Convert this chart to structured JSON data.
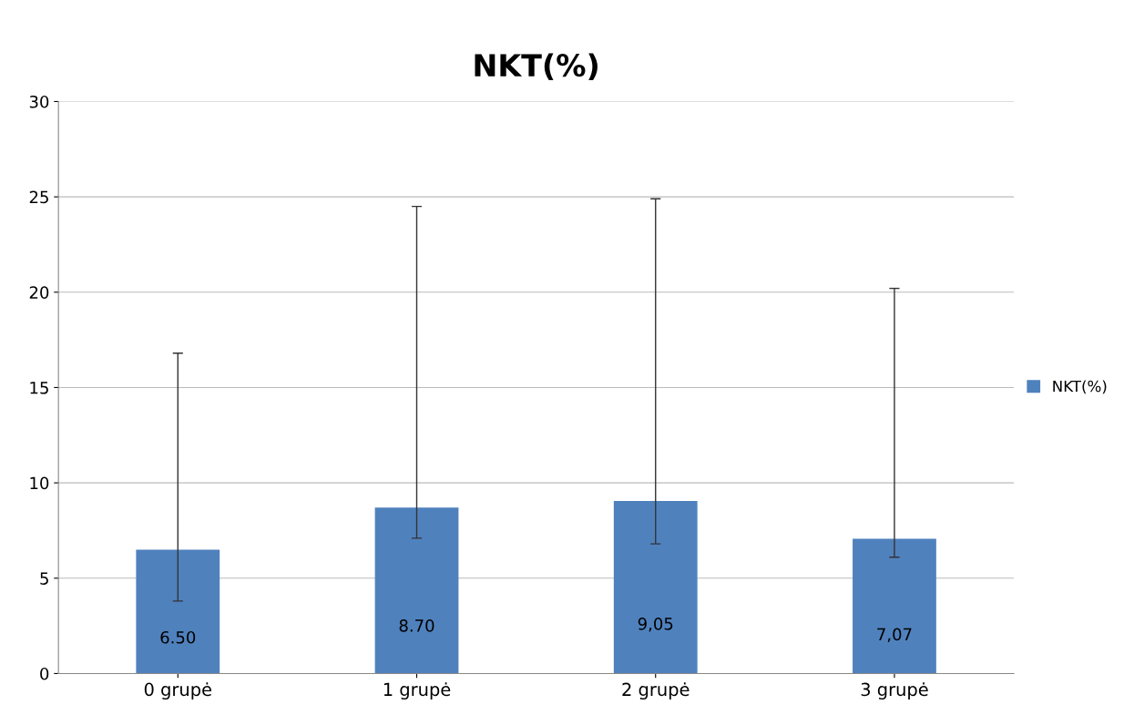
{
  "chart_data": {
    "type": "bar",
    "title": "NKT(%)",
    "categories": [
      "0 grupė",
      "1 grupė",
      "2 grupė",
      "3 grupė"
    ],
    "series": [
      {
        "name": "NKT(%)",
        "color": "#4f81bd",
        "values": [
          6.5,
          8.7,
          9.05,
          7.07
        ],
        "value_labels": [
          "6.50",
          "8.70",
          "9,05",
          "7,07"
        ],
        "errors": [
          [
            3.8,
            16.8
          ],
          [
            7.1,
            24.5
          ],
          [
            6.8,
            24.9
          ],
          [
            6.1,
            20.2
          ]
        ]
      }
    ],
    "ylim": [
      0,
      30
    ],
    "yticks": [
      0,
      5,
      10,
      15,
      20,
      25,
      30
    ],
    "grid": "y",
    "legend": "right"
  }
}
